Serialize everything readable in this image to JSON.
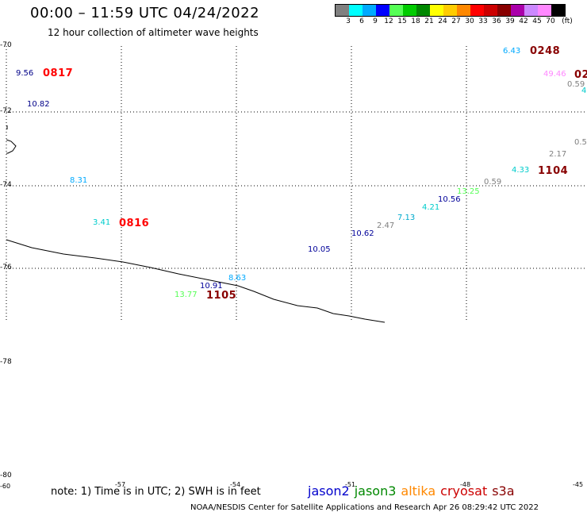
{
  "header": {
    "title": "00:00 – 11:59 UTC 04/24/2022",
    "subtitle": "12 hour collection of altimeter wave heights"
  },
  "legend": {
    "unit": "(ft)",
    "colors": [
      "#808080",
      "#00ffff",
      "#00aaff",
      "#0000ff",
      "#55ff55",
      "#00cc00",
      "#008800",
      "#ffff00",
      "#ffcc00",
      "#ff8800",
      "#ff0000",
      "#cc0000",
      "#880000",
      "#aa00aa",
      "#cc88ff",
      "#ff88ff",
      "#000000"
    ],
    "tick_labels": [
      "3",
      "6",
      "9",
      "12",
      "15",
      "18",
      "21",
      "24",
      "27",
      "30",
      "33",
      "36",
      "39",
      "42",
      "45",
      "70"
    ]
  },
  "axes": {
    "lat_labels": [
      "-70",
      "-72",
      "-74",
      "-76",
      "-78",
      "-80"
    ],
    "lon_labels": [
      "-60",
      "-57",
      "-54",
      "-51",
      "-48",
      "-45"
    ]
  },
  "observations": [
    {
      "value": "9.56",
      "color": "#000088"
    },
    {
      "value": "10.82",
      "color": "#000088"
    },
    {
      "value": "8.31",
      "color": "#00aaff"
    },
    {
      "value": "3.41",
      "color": "#00cccc"
    },
    {
      "value": "10.05",
      "color": "#000099"
    },
    {
      "value": "10.62",
      "color": "#000099"
    },
    {
      "value": "2.47",
      "color": "#808080"
    },
    {
      "value": "7.13",
      "color": "#00aacc"
    },
    {
      "value": "4.21",
      "color": "#00cccc"
    },
    {
      "value": "10.56",
      "color": "#000099"
    },
    {
      "value": "13.25",
      "color": "#55ff55"
    },
    {
      "value": "0.59",
      "color": "#808080"
    },
    {
      "value": "4.33",
      "color": "#00cccc"
    },
    {
      "value": "2.17",
      "color": "#808080"
    },
    {
      "value": "0.5",
      "color": "#808080"
    },
    {
      "value": "0.59",
      "color": "#808080"
    },
    {
      "value": "4",
      "color": "#00cccc"
    },
    {
      "value": "49.46",
      "color": "#ff88ff"
    },
    {
      "value": "6.43",
      "color": "#00aaff"
    },
    {
      "value": "8.63",
      "color": "#00aaff"
    },
    {
      "value": "10.91",
      "color": "#000099"
    },
    {
      "value": "13.77",
      "color": "#55ff55"
    }
  ],
  "time_labels": [
    {
      "value": "0817",
      "color": "#ff0000"
    },
    {
      "value": "0816",
      "color": "#ff0000"
    },
    {
      "value": "1105",
      "color": "#880000"
    },
    {
      "value": "1104",
      "color": "#880000"
    },
    {
      "value": "0248",
      "color": "#880000"
    },
    {
      "value": "02",
      "color": "#880000"
    }
  ],
  "footer": {
    "note": "note: 1) Time is in UTC; 2) SWH is in feet",
    "satellites": [
      {
        "name": "jason2",
        "color": "#0000cc"
      },
      {
        "name": "jason3",
        "color": "#008800"
      },
      {
        "name": "altika",
        "color": "#ff8800"
      },
      {
        "name": "cryosat",
        "color": "#cc0000"
      },
      {
        "name": "s3a",
        "color": "#880000"
      }
    ],
    "credit": "NOAA/NESDIS Center for Satellite Applications and Research   Apr 26 08:29:42 UTC 2022"
  }
}
